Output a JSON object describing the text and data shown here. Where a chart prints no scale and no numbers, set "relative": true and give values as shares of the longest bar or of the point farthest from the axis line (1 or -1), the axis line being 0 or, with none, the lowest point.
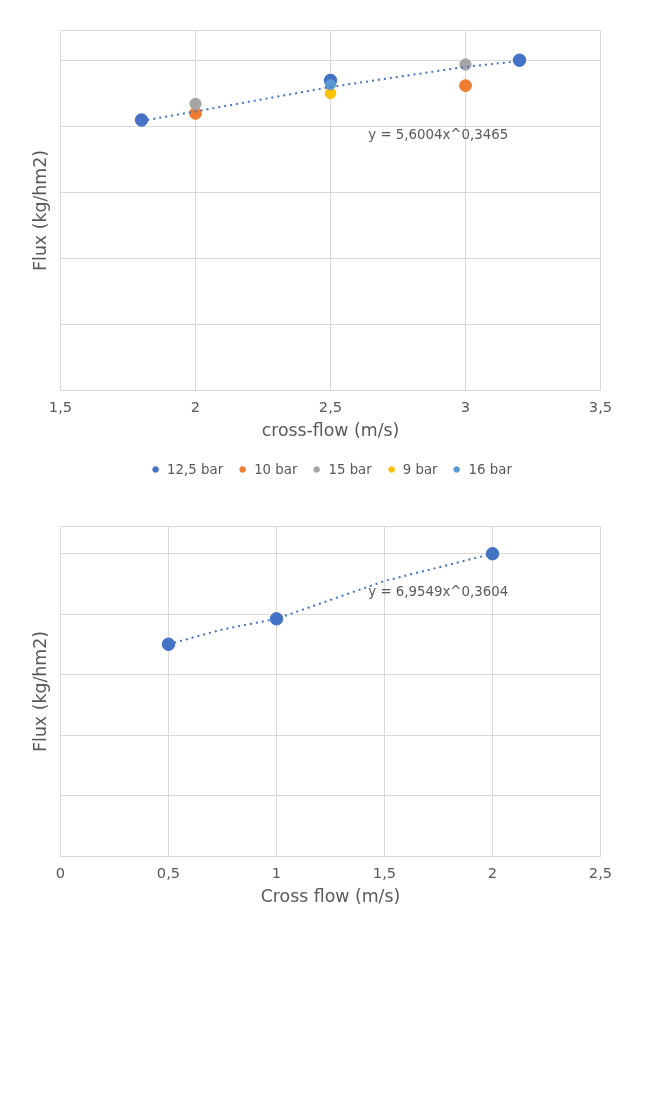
{
  "chart_data": [
    {
      "type": "scatter",
      "xlabel": "cross-flow (m/s)",
      "ylabel": "Flux (kg/hm2)",
      "relative": true,
      "xlim": [
        1.5,
        3.5
      ],
      "xticks": [
        {
          "value": 1.5,
          "label": "1,5"
        },
        2,
        {
          "value": 2.5,
          "label": "2,5"
        },
        3,
        {
          "value": 3.5,
          "label": "3,5"
        }
      ],
      "grid": true,
      "legend": "bottom",
      "marker": "circle",
      "annotations": [
        "y = 5,6004x^0,3465"
      ],
      "series": [
        {
          "name": "12,5 bar",
          "color": "#4472c4",
          "x": [
            1.8,
            2.5,
            3.2
          ],
          "values": [
            0.819,
            0.939,
            1
          ]
        },
        {
          "name": "10 bar",
          "color": "#ed7d31",
          "x": [
            2,
            3
          ],
          "values": [
            0.839,
            0.923
          ]
        },
        {
          "name": "15 bar",
          "color": "#a5a5a5",
          "x": [
            2,
            3
          ],
          "values": [
            0.868,
            0.987
          ]
        },
        {
          "name": "9 bar",
          "color": "#ffc000",
          "x": [
            2.5
          ],
          "values": [
            0.9
          ]
        },
        {
          "name": "16 bar",
          "color": "#5b9bd5",
          "x": [
            2.5
          ],
          "values": [
            0.926
          ]
        },
        {
          "type": "line",
          "marker": "none",
          "line_style": "dotted",
          "color": "#4472c4",
          "x": [
            1.8,
            2,
            2.5,
            3,
            3.2
          ],
          "values": [
            0.816,
            0.845,
            0.919,
            0.98,
            0.997
          ]
        }
      ]
    },
    {
      "type": "scatter",
      "xlabel": "Cross flow (m/s)",
      "ylabel": "Flux (kg/hm2)",
      "relative": true,
      "xlim": [
        0,
        2.5
      ],
      "xticks": [
        0,
        {
          "value": 0.5,
          "label": "0,5"
        },
        1,
        {
          "value": 1.5,
          "label": "1,5"
        },
        2,
        {
          "value": 2.5,
          "label": "2,5"
        }
      ],
      "grid": true,
      "marker": "circle",
      "annotations": [
        "y = 6,9549x^0,3604"
      ],
      "series": [
        {
          "color": "#4472c4",
          "x": [
            0.5,
            1,
            2
          ],
          "values": [
            0.701,
            0.785,
            1
          ]
        },
        {
          "type": "line",
          "marker": "none",
          "line_style": "dotted",
          "color": "#4472c4",
          "x": [
            0.5,
            0.75,
            1,
            1.5,
            2
          ],
          "values": [
            0.701,
            0.75,
            0.785,
            0.91,
            1
          ]
        }
      ]
    }
  ]
}
